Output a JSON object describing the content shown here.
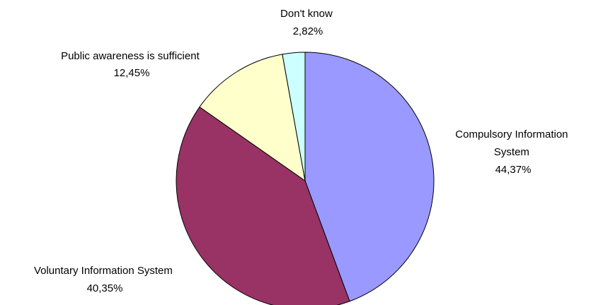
{
  "chart_data": {
    "type": "pie",
    "title": "",
    "slices": [
      {
        "label_lines": [
          "Compulsory Information",
          "System"
        ],
        "value_text": "44,37%",
        "value": 44.37,
        "color": "#9999ff"
      },
      {
        "label_lines": [
          "Voluntary Information System"
        ],
        "value_text": "40,35%",
        "value": 40.35,
        "color": "#993366"
      },
      {
        "label_lines": [
          "Public awareness is sufficient"
        ],
        "value_text": "12,45%",
        "value": 12.45,
        "color": "#ffffcc"
      },
      {
        "label_lines": [
          "Don't know"
        ],
        "value_text": "2,82%",
        "value": 2.82,
        "color": "#ccffff"
      }
    ]
  }
}
